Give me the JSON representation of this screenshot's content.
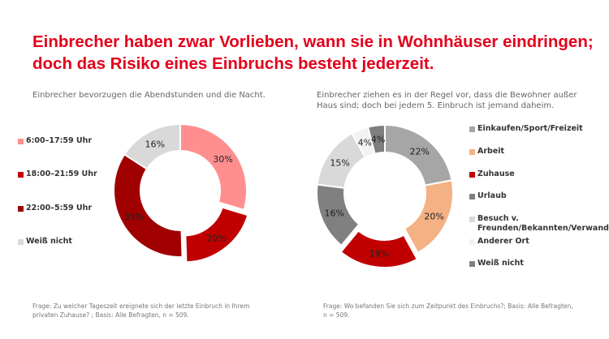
{
  "title": "Einbrecher haben zwar Vorlieben, wann sie in Wohnhäuser eindringen; doch das Risiko eines Einbruchs besteht jederzeit.",
  "chart_data": [
    {
      "type": "pie",
      "subtitle": "Einbrecher bevorzugen die Abendstunden und die Nacht.",
      "categories": [
        "6:00–17:59 Uhr",
        "18:00–21:59 Uhr",
        "22:00–5:59 Uhr",
        "Weiß nicht"
      ],
      "values": [
        30,
        20,
        35,
        16
      ],
      "labels": [
        "30%",
        "20%",
        "35%",
        "16%"
      ],
      "colors": [
        "#FF8F8F",
        "#C00000",
        "#A00000",
        "#D9D9D9"
      ],
      "exploded": "18:00–21:59 Uhr",
      "donut": true,
      "legend": "left",
      "footnote": "Frage: Zu welcher Tageszeit ereignete sich der letzte Einbruch in Ihrem privaten Zuhause? ; Basis: Alle Befragten, n = 509."
    },
    {
      "type": "pie",
      "subtitle": "Einbrecher ziehen es in der Regel vor, dass die Bewohner außer Haus sind; doch bei jedem 5. Einbruch ist jemand daheim.",
      "categories": [
        "Einkaufen/Sport/Freizeit",
        "Arbeit",
        "Zuhause",
        "Urlaub",
        "Besuch v. Freunden/Bekannten/Verwandten",
        "Anderer Ort",
        "Weiß nicht"
      ],
      "values": [
        22,
        20,
        19,
        16,
        15,
        4,
        4
      ],
      "labels": [
        "22%",
        "20%",
        "19%",
        "16%",
        "15%",
        "4%",
        "4%"
      ],
      "colors": [
        "#A6A6A6",
        "#F4B183",
        "#C00000",
        "#808080",
        "#D9D9D9",
        "#F2F2F2",
        "#7F7F7F"
      ],
      "exploded": "Zuhause",
      "donut": true,
      "legend": "right",
      "footnote": "Frage: Wo befanden Sie sich zum Zeitpunkt des Einbruchs?;  Basis: Alle Befragten, n = 509."
    }
  ]
}
